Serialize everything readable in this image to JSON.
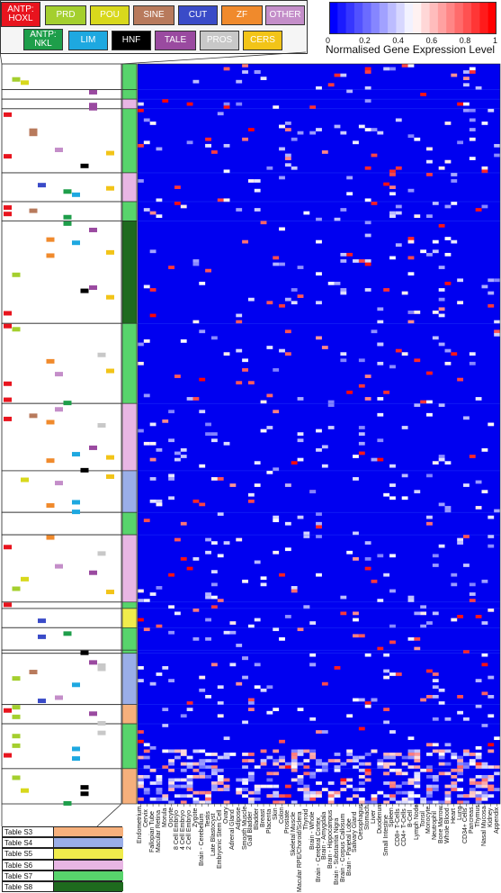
{
  "chart_data": {
    "type": "heatmap",
    "title": "",
    "colorbar": {
      "label": "Normalised Gene Expression Level",
      "ticks": [
        "0",
        "0.2",
        "0.4",
        "0.6",
        "0.8",
        "1"
      ],
      "range": [
        0,
        1
      ],
      "low_color": "#0000ff",
      "mid_color": "#ffffff",
      "high_color": "#ff0000"
    },
    "columns": [
      "Endometrium",
      "Cervix",
      "Fallopian Tube",
      "Macular Retina",
      "Morula",
      "Oocyte",
      "8 Cell Embryo",
      "4 Cell Embryo",
      "2 Cell Embryo",
      "Zygote",
      "Brain - Cerebellum",
      "Testis",
      "Late Blastocyst",
      "Embryonic Stem Cell",
      "Ovary",
      "Adrenal Gland",
      "Adipose",
      "Smooth Muscle",
      "Gall Bladder",
      "Bladder",
      "Breast",
      "Placenta",
      "Skin",
      "Colon",
      "Prostate",
      "Skeletal Muscle",
      "Macular RPE/Choroid/Sclera",
      "Thyroid",
      "Brain - Whole",
      "Brain - Cerebral Cortex",
      "Brain - Amygdala",
      "Brain - Hippocampus",
      "Brain - Substantia Nigra",
      "Brain - Corpus Callosum",
      "Brain - Parietal Lobe",
      "Salivary Gland",
      "Oesophagus",
      "Stomach",
      "Liver",
      "Duodenum",
      "Small Intestine",
      "Spleen",
      "CD8+ T-Cells",
      "CD4+ T-Cells",
      "B-Cell",
      "Lymph Node",
      "Tonsil",
      "Monocyte",
      "Neutrophil",
      "Bone Marrow",
      "Whole Blood",
      "Heart",
      "Lung",
      "CD34+ Cells",
      "Pancreas",
      "Thymus",
      "Nasal Mucosa",
      "Kidney",
      "Appendix"
    ],
    "gene_classes": [
      {
        "name": "ANTP: HOXL",
        "color": "#e8141e"
      },
      {
        "name": "PRD",
        "color": "#a4cf2e"
      },
      {
        "name": "POU",
        "color": "#d8d81c"
      },
      {
        "name": "SINE",
        "color": "#b87a5c"
      },
      {
        "name": "CUT",
        "color": "#3a4bc8"
      },
      {
        "name": "ZF",
        "color": "#f08a2c"
      },
      {
        "name": "OTHER",
        "color": "#c48ec9"
      },
      {
        "name": "ANTP: NKL",
        "color": "#1e9e4a"
      },
      {
        "name": "LIM",
        "color": "#1ea8e0"
      },
      {
        "name": "HNF",
        "color": "#000000"
      },
      {
        "name": "TALE",
        "color": "#9a4aa0"
      },
      {
        "name": "PROS",
        "color": "#c8c8c8"
      },
      {
        "name": "CERS",
        "color": "#f2c418"
      }
    ],
    "tables": [
      {
        "name": "Table S3",
        "color": "#f6b07c"
      },
      {
        "name": "Table S4",
        "color": "#9aaee8"
      },
      {
        "name": "Table S5",
        "color": "#f0ec4c"
      },
      {
        "name": "Table S6",
        "color": "#e8b6e4"
      },
      {
        "name": "Table S7",
        "color": "#58d46c"
      },
      {
        "name": "Table S8",
        "color": "#1e6a1e"
      }
    ],
    "row_groups": [
      {
        "table": "Table S7",
        "rows": 8
      },
      {
        "table": "Table S7",
        "rows": 3
      },
      {
        "table": "Table S6",
        "rows": 3
      },
      {
        "table": "Table S7",
        "rows": 20
      },
      {
        "table": "Table S6",
        "rows": 9
      },
      {
        "table": "Table S7",
        "rows": 6
      },
      {
        "table": "Table S8",
        "rows": 32
      },
      {
        "table": "Table S7",
        "rows": 25
      },
      {
        "table": "Table S6",
        "rows": 21
      },
      {
        "table": "Table S4",
        "rows": 13
      },
      {
        "table": "Table S7",
        "rows": 7
      },
      {
        "table": "Table S6",
        "rows": 21
      },
      {
        "table": "Table S7",
        "rows": 2
      },
      {
        "table": "Table S5",
        "rows": 6
      },
      {
        "table": "Table S7",
        "rows": 7
      },
      {
        "table": "Table S7",
        "rows": 1
      },
      {
        "table": "Table S4",
        "rows": 16
      },
      {
        "table": "Table S3",
        "rows": 6
      },
      {
        "table": "Table S7",
        "rows": 14
      },
      {
        "table": "Table S3",
        "rows": 11
      }
    ]
  }
}
